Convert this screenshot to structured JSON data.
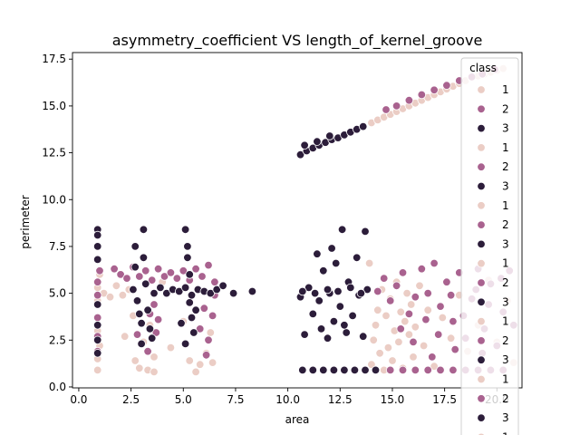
{
  "chart_data": {
    "type": "scatter",
    "title": "asymmetry_coefficient VS length_of_kernel_groove",
    "xlabel": "area",
    "ylabel": "perimeter",
    "xlim": [
      -0.3,
      21.2
    ],
    "ylim": [
      -0.05,
      17.85
    ],
    "xticks": [
      0.0,
      2.5,
      5.0,
      7.5,
      10.0,
      12.5,
      15.0,
      17.5,
      20.0
    ],
    "yticks": [
      0.0,
      2.5,
      5.0,
      7.5,
      10.0,
      12.5,
      15.0,
      17.5
    ],
    "xtick_labels": [
      "0.0",
      "2.5",
      "5.0",
      "7.5",
      "10.0",
      "12.5",
      "15.0",
      "17.5",
      "20.0"
    ],
    "ytick_labels": [
      "0.0",
      "2.5",
      "5.0",
      "7.5",
      "10.0",
      "12.5",
      "15.0",
      "17.5"
    ],
    "legend": {
      "title": "class",
      "position": "top-right",
      "entries": [
        "1",
        "2",
        "3",
        "1",
        "2",
        "3",
        "1",
        "2",
        "3",
        "1",
        "2",
        "3",
        "1",
        "2",
        "3",
        "1",
        "2",
        "3",
        "1"
      ]
    },
    "colors": {
      "1": "#ebcdc5",
      "2": "#a9628f",
      "3": "#2c1d3a"
    },
    "series": [
      {
        "name": "1",
        "points": [
          [
            0.9,
            0.9
          ],
          [
            0.9,
            1.5
          ],
          [
            0.9,
            3.0
          ],
          [
            0.9,
            4.6
          ],
          [
            0.9,
            5.3
          ],
          [
            1.0,
            2.2
          ],
          [
            1.0,
            6.0
          ],
          [
            1.2,
            5.0
          ],
          [
            1.5,
            4.8
          ],
          [
            1.8,
            5.4
          ],
          [
            2.1,
            4.9
          ],
          [
            2.4,
            5.2
          ],
          [
            2.6,
            3.8
          ],
          [
            2.7,
            1.4
          ],
          [
            2.9,
            1.0
          ],
          [
            3.1,
            2.4
          ],
          [
            3.3,
            0.9
          ],
          [
            3.4,
            3.3
          ],
          [
            3.6,
            1.6
          ],
          [
            3.6,
            0.8
          ],
          [
            4.0,
            5.6
          ],
          [
            4.4,
            2.1
          ],
          [
            5.0,
            3.5
          ],
          [
            5.3,
            1.4
          ],
          [
            5.6,
            0.8
          ],
          [
            5.8,
            1.2
          ],
          [
            6.1,
            1.8
          ],
          [
            6.3,
            2.9
          ],
          [
            6.4,
            1.3
          ],
          [
            2.2,
            2.7
          ],
          [
            13.9,
            6.6
          ],
          [
            14.0,
            1.2
          ],
          [
            14.1,
            2.5
          ],
          [
            14.2,
            3.3
          ],
          [
            14.3,
            4.1
          ],
          [
            14.4,
            1.8
          ],
          [
            14.5,
            5.2
          ],
          [
            14.6,
            0.9
          ],
          [
            14.7,
            3.8
          ],
          [
            14.8,
            2.1
          ],
          [
            14.9,
            4.7
          ],
          [
            15.0,
            1.4
          ],
          [
            15.1,
            3.0
          ],
          [
            15.2,
            5.6
          ],
          [
            15.3,
            2.4
          ],
          [
            15.4,
            4.0
          ],
          [
            15.5,
            1.0
          ],
          [
            15.6,
            3.5
          ],
          [
            15.7,
            5.0
          ],
          [
            15.8,
            2.8
          ],
          [
            15.9,
            4.4
          ],
          [
            16.0,
            1.6
          ],
          [
            16.1,
            3.2
          ],
          [
            16.3,
            5.4
          ],
          [
            16.5,
            2.2
          ],
          [
            16.7,
            4.1
          ],
          [
            17.0,
            1.1
          ],
          [
            17.4,
            3.7
          ],
          [
            17.8,
            2.6
          ],
          [
            18.2,
            4.9
          ],
          [
            18.6,
            1.9
          ],
          [
            19.1,
            3.3
          ],
          [
            19.6,
            5.7
          ],
          [
            20.0,
            2.4
          ],
          [
            20.5,
            4.6
          ],
          [
            20.8,
            1.3
          ],
          [
            14.0,
            14.1
          ],
          [
            14.3,
            14.25
          ],
          [
            14.6,
            14.4
          ],
          [
            14.9,
            14.55
          ],
          [
            15.2,
            14.7
          ],
          [
            15.5,
            14.85
          ],
          [
            15.8,
            15.0
          ],
          [
            16.1,
            15.15
          ],
          [
            16.4,
            15.3
          ],
          [
            16.7,
            15.45
          ],
          [
            17.0,
            15.6
          ],
          [
            17.3,
            15.75
          ],
          [
            17.6,
            15.9
          ],
          [
            17.9,
            16.05
          ],
          [
            18.2,
            16.2
          ],
          [
            18.5,
            16.35
          ],
          [
            18.8,
            16.5
          ],
          [
            19.1,
            16.6
          ],
          [
            19.4,
            16.7
          ],
          [
            19.7,
            16.8
          ],
          [
            20.0,
            16.9
          ],
          [
            20.3,
            17.0
          ]
        ]
      },
      {
        "name": "2",
        "points": [
          [
            0.9,
            5.6
          ],
          [
            0.9,
            4.9
          ],
          [
            0.9,
            3.7
          ],
          [
            0.9,
            2.7
          ],
          [
            0.9,
            1.9
          ],
          [
            1.0,
            6.2
          ],
          [
            1.7,
            6.3
          ],
          [
            2.0,
            6.0
          ],
          [
            2.3,
            5.8
          ],
          [
            2.6,
            6.4
          ],
          [
            2.9,
            5.9
          ],
          [
            3.2,
            6.2
          ],
          [
            3.5,
            5.7
          ],
          [
            3.8,
            6.3
          ],
          [
            4.1,
            5.9
          ],
          [
            4.4,
            6.1
          ],
          [
            4.7,
            5.8
          ],
          [
            5.0,
            6.2
          ],
          [
            5.3,
            5.7
          ],
          [
            5.6,
            6.3
          ],
          [
            5.9,
            5.9
          ],
          [
            6.2,
            6.5
          ],
          [
            6.5,
            5.6
          ],
          [
            3.4,
            3.9
          ],
          [
            3.6,
            4.4
          ],
          [
            3.7,
            2.9
          ],
          [
            3.8,
            3.6
          ],
          [
            5.8,
            3.1
          ],
          [
            6.0,
            4.2
          ],
          [
            6.2,
            2.5
          ],
          [
            6.4,
            3.8
          ],
          [
            6.5,
            4.9
          ],
          [
            3.3,
            1.9
          ],
          [
            6.1,
            1.7
          ],
          [
            5.7,
            5.2
          ],
          [
            2.8,
            2.8
          ],
          [
            14.3,
            5.1
          ],
          [
            14.6,
            5.8
          ],
          [
            14.9,
            4.6
          ],
          [
            15.2,
            5.4
          ],
          [
            15.5,
            6.1
          ],
          [
            15.8,
            3.9
          ],
          [
            16.1,
            4.8
          ],
          [
            16.4,
            6.3
          ],
          [
            16.7,
            5.0
          ],
          [
            17.0,
            6.6
          ],
          [
            17.3,
            4.3
          ],
          [
            17.6,
            5.6
          ],
          [
            17.9,
            3.5
          ],
          [
            18.2,
            6.1
          ],
          [
            18.5,
            2.6
          ],
          [
            18.8,
            4.7
          ],
          [
            19.1,
            6.3
          ],
          [
            19.4,
            3.1
          ],
          [
            19.7,
            5.5
          ],
          [
            20.0,
            2.2
          ],
          [
            20.3,
            4.0
          ],
          [
            20.6,
            6.2
          ],
          [
            20.8,
            3.3
          ],
          [
            15.4,
            3.1
          ],
          [
            16.0,
            2.4
          ],
          [
            16.6,
            3.6
          ],
          [
            17.2,
            2.8
          ],
          [
            17.8,
            4.9
          ],
          [
            18.4,
            3.8
          ],
          [
            19.0,
            5.2
          ],
          [
            19.6,
            4.4
          ],
          [
            20.2,
            5.8
          ],
          [
            16.9,
            1.6
          ],
          [
            18.0,
            2.0
          ],
          [
            19.3,
            1.8
          ],
          [
            14.9,
            0.9
          ],
          [
            15.5,
            0.9
          ],
          [
            16.1,
            0.9
          ],
          [
            16.7,
            0.9
          ],
          [
            17.3,
            0.9
          ],
          [
            17.9,
            0.9
          ],
          [
            18.5,
            0.9
          ],
          [
            19.1,
            0.9
          ],
          [
            19.7,
            0.9
          ],
          [
            20.3,
            0.9
          ],
          [
            14.7,
            14.8
          ],
          [
            15.2,
            15.0
          ],
          [
            15.8,
            15.3
          ],
          [
            16.4,
            15.6
          ],
          [
            17.0,
            15.85
          ],
          [
            17.6,
            16.1
          ],
          [
            18.2,
            16.35
          ],
          [
            18.8,
            16.55
          ],
          [
            19.3,
            16.7
          ],
          [
            19.9,
            16.95
          ]
        ]
      },
      {
        "name": "3",
        "points": [
          [
            0.9,
            8.4
          ],
          [
            0.9,
            8.1
          ],
          [
            0.9,
            7.5
          ],
          [
            0.9,
            6.8
          ],
          [
            0.9,
            4.4
          ],
          [
            0.9,
            3.3
          ],
          [
            0.9,
            2.5
          ],
          [
            0.9,
            1.8
          ],
          [
            2.6,
            5.2
          ],
          [
            2.7,
            7.5
          ],
          [
            2.8,
            4.6
          ],
          [
            2.9,
            3.9
          ],
          [
            3.0,
            2.3
          ],
          [
            3.1,
            8.4
          ],
          [
            3.1,
            6.9
          ],
          [
            3.2,
            5.5
          ],
          [
            3.3,
            4.1
          ],
          [
            3.4,
            3.1
          ],
          [
            3.5,
            2.6
          ],
          [
            2.7,
            6.4
          ],
          [
            3.0,
            3.4
          ],
          [
            3.6,
            5.0
          ],
          [
            3.9,
            5.3
          ],
          [
            4.2,
            5.0
          ],
          [
            4.5,
            5.2
          ],
          [
            4.8,
            5.1
          ],
          [
            5.1,
            5.3
          ],
          [
            5.4,
            4.9
          ],
          [
            5.7,
            5.2
          ],
          [
            6.0,
            5.1
          ],
          [
            6.3,
            5.0
          ],
          [
            6.6,
            5.2
          ],
          [
            6.9,
            5.4
          ],
          [
            7.4,
            5.0
          ],
          [
            8.3,
            5.1
          ],
          [
            5.1,
            8.4
          ],
          [
            5.2,
            7.5
          ],
          [
            5.2,
            6.9
          ],
          [
            5.3,
            6.0
          ],
          [
            5.3,
            4.5
          ],
          [
            5.4,
            3.7
          ],
          [
            5.5,
            2.9
          ],
          [
            5.1,
            2.3
          ],
          [
            5.6,
            4.1
          ],
          [
            4.9,
            3.4
          ],
          [
            10.6,
            4.8
          ],
          [
            10.8,
            2.8
          ],
          [
            11.0,
            5.3
          ],
          [
            11.2,
            3.9
          ],
          [
            11.4,
            7.1
          ],
          [
            11.5,
            4.6
          ],
          [
            11.7,
            6.2
          ],
          [
            11.9,
            2.6
          ],
          [
            12.0,
            5.0
          ],
          [
            12.2,
            3.5
          ],
          [
            12.3,
            6.6
          ],
          [
            12.5,
            4.3
          ],
          [
            12.6,
            8.4
          ],
          [
            12.8,
            2.9
          ],
          [
            12.9,
            5.6
          ],
          [
            13.1,
            3.8
          ],
          [
            13.3,
            6.9
          ],
          [
            13.4,
            4.9
          ],
          [
            13.6,
            2.7
          ],
          [
            13.8,
            5.2
          ],
          [
            10.7,
            5.1
          ],
          [
            11.3,
            5.0
          ],
          [
            11.9,
            5.2
          ],
          [
            12.4,
            5.1
          ],
          [
            13.0,
            5.3
          ],
          [
            13.5,
            5.0
          ],
          [
            13.7,
            8.3
          ],
          [
            12.1,
            7.4
          ],
          [
            11.6,
            3.1
          ],
          [
            12.7,
            3.3
          ],
          [
            10.7,
            0.9
          ],
          [
            11.2,
            0.9
          ],
          [
            11.7,
            0.9
          ],
          [
            12.2,
            0.9
          ],
          [
            12.7,
            0.9
          ],
          [
            13.2,
            0.9
          ],
          [
            13.7,
            0.9
          ],
          [
            14.2,
            0.9
          ],
          [
            10.6,
            12.4
          ],
          [
            10.9,
            12.6
          ],
          [
            11.2,
            12.75
          ],
          [
            11.5,
            12.9
          ],
          [
            11.8,
            13.05
          ],
          [
            12.1,
            13.2
          ],
          [
            12.4,
            13.3
          ],
          [
            12.7,
            13.45
          ],
          [
            13.0,
            13.6
          ],
          [
            13.3,
            13.75
          ],
          [
            13.6,
            13.9
          ],
          [
            10.8,
            12.9
          ],
          [
            11.4,
            13.1
          ],
          [
            12.0,
            13.4
          ]
        ]
      }
    ]
  }
}
